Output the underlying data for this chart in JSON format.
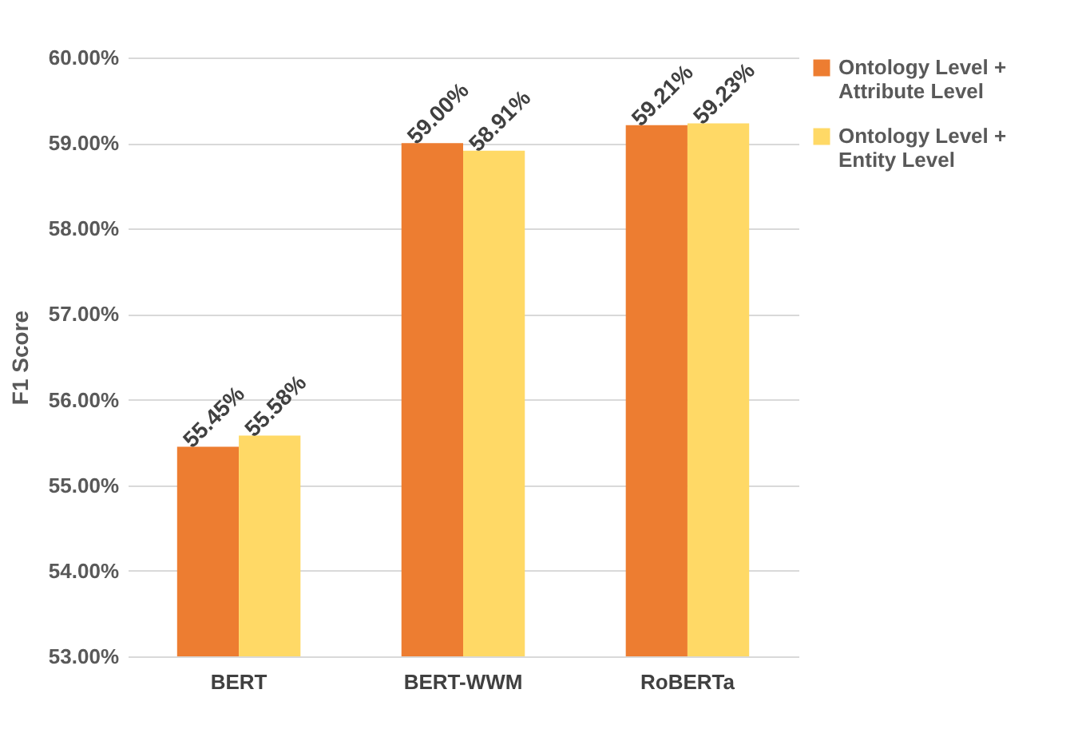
{
  "chart_data": {
    "type": "bar",
    "ylabel": "F1 Score",
    "categories": [
      "BERT",
      "BERT-WWM",
      "RoBERTa"
    ],
    "series": [
      {
        "name": "Ontology Level + Attribute Level",
        "color": "#ed7d31",
        "values": [
          55.45,
          59.0,
          59.21
        ],
        "value_labels": [
          "55.45%",
          "59.00%",
          "59.21%"
        ]
      },
      {
        "name": "Ontology Level + Entity Level",
        "color": "#ffd966",
        "values": [
          55.58,
          58.91,
          59.23
        ],
        "value_labels": [
          "55.58%",
          "58.91%",
          "59.23%"
        ]
      }
    ],
    "ylim": [
      53,
      60
    ],
    "yticks": [
      {
        "value": 53,
        "label": "53.00%"
      },
      {
        "value": 54,
        "label": "54.00%"
      },
      {
        "value": 55,
        "label": "55.00%"
      },
      {
        "value": 56,
        "label": "56.00%"
      },
      {
        "value": 57,
        "label": "57.00%"
      },
      {
        "value": 58,
        "label": "58.00%"
      },
      {
        "value": 59,
        "label": "59.00%"
      },
      {
        "value": 60,
        "label": "60.00%"
      }
    ],
    "grid": "y",
    "legend": "right"
  }
}
